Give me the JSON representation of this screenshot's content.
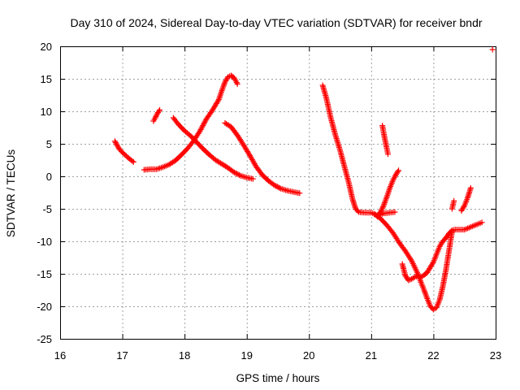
{
  "chart_data": {
    "type": "scatter",
    "title": "Day 310 of 2024, Sidereal Day-to-day VTEC variation (SDTVAR) for receiver bndr",
    "xlabel": "GPS time / hours",
    "ylabel": "SDTVAR / TECUs",
    "xlim": [
      16,
      23
    ],
    "ylim": [
      -25,
      20
    ],
    "xticks": [
      "16",
      "17",
      "18",
      "19",
      "20",
      "21",
      "22",
      "23"
    ],
    "yticks": [
      "20",
      "15",
      "10",
      "5",
      "0",
      "-5",
      "-10",
      "-15",
      "-20",
      "-25"
    ],
    "grid": true,
    "marker": "+",
    "color": "#ff0000",
    "tracks": [
      {
        "x": [
          16.88,
          16.95,
          17.02,
          17.1,
          17.18
        ],
        "y": [
          5.4,
          4.2,
          3.5,
          2.8,
          2.2
        ]
      },
      {
        "x": [
          17.5,
          17.53,
          17.56,
          17.6
        ],
        "y": [
          8.5,
          9.0,
          9.6,
          10.2
        ]
      },
      {
        "x": [
          17.35,
          17.45,
          17.55,
          17.65,
          17.75,
          17.85,
          17.95,
          18.05,
          18.15,
          18.25,
          18.35,
          18.45,
          18.55,
          18.6,
          18.65,
          18.7,
          18.75,
          18.8,
          18.85
        ],
        "y": [
          1.0,
          1.1,
          1.1,
          1.4,
          1.8,
          2.4,
          3.3,
          4.3,
          5.5,
          7.0,
          8.8,
          10.2,
          11.8,
          13.2,
          14.5,
          15.3,
          15.5,
          15.1,
          14.2
        ]
      },
      {
        "x": [
          17.82,
          17.9,
          18.0,
          18.1,
          18.2,
          18.3,
          18.4,
          18.5,
          18.6,
          18.7,
          18.8,
          18.9,
          19.0,
          19.1
        ],
        "y": [
          9.0,
          8.0,
          7.0,
          6.2,
          5.2,
          4.2,
          3.3,
          2.5,
          1.9,
          1.3,
          0.6,
          0.1,
          -0.2,
          -0.4
        ]
      },
      {
        "x": [
          18.65,
          18.75,
          18.85,
          18.95,
          19.05,
          19.15,
          19.25,
          19.35,
          19.45,
          19.55,
          19.65,
          19.75,
          19.85
        ],
        "y": [
          8.2,
          7.6,
          6.3,
          4.8,
          3.2,
          1.5,
          0.2,
          -0.7,
          -1.4,
          -1.9,
          -2.2,
          -2.4,
          -2.6
        ]
      },
      {
        "x": [
          20.22,
          20.28,
          20.35,
          20.42,
          20.5,
          20.57,
          20.64,
          20.7,
          20.75,
          20.8,
          20.9,
          21.0,
          21.05,
          21.1,
          21.15,
          21.2,
          21.3,
          21.38
        ],
        "y": [
          14.0,
          12.0,
          9.0,
          6.5,
          4.0,
          1.5,
          -1.0,
          -3.5,
          -5.0,
          -5.5,
          -5.6,
          -5.6,
          -5.8,
          -6.0,
          -5.9,
          -5.7,
          -5.6,
          -5.5
        ]
      },
      {
        "x": [
          21.18,
          21.21,
          21.24,
          21.27
        ],
        "y": [
          7.8,
          6.2,
          4.8,
          3.4
        ]
      },
      {
        "x": [
          21.1,
          21.15,
          21.2,
          21.25,
          21.3,
          21.35,
          21.4,
          21.44
        ],
        "y": [
          -6.2,
          -5.5,
          -4.5,
          -3.2,
          -1.8,
          -0.6,
          0.3,
          0.9
        ]
      },
      {
        "x": [
          21.05,
          21.15,
          21.25,
          21.35,
          21.45,
          21.55,
          21.65,
          21.75,
          21.8,
          21.85,
          21.9,
          21.95,
          22.0,
          22.05,
          22.1,
          22.15,
          22.2,
          22.25,
          22.3
        ],
        "y": [
          -5.8,
          -6.5,
          -7.5,
          -8.7,
          -10.2,
          -11.5,
          -13.0,
          -15.0,
          -16.3,
          -17.5,
          -18.8,
          -20.0,
          -20.5,
          -20.2,
          -19.0,
          -17.0,
          -14.5,
          -11.5,
          -8.5
        ]
      },
      {
        "x": [
          21.5,
          21.55,
          21.6,
          21.65,
          21.7,
          21.75,
          21.8,
          21.85,
          21.9,
          21.95,
          22.0,
          22.05,
          22.1,
          22.15,
          22.2,
          22.25,
          22.3,
          22.35,
          22.4,
          22.5,
          22.6,
          22.7,
          22.78
        ],
        "y": [
          -13.5,
          -15.3,
          -16.0,
          -15.8,
          -15.5,
          -15.3,
          -15.5,
          -15.2,
          -14.8,
          -14.0,
          -13.2,
          -12.0,
          -10.8,
          -10.0,
          -9.5,
          -8.8,
          -8.3,
          -8.2,
          -8.2,
          -8.2,
          -7.8,
          -7.4,
          -7.1
        ]
      },
      {
        "x": [
          22.3,
          22.33
        ],
        "y": [
          -5.0,
          -3.8
        ]
      },
      {
        "x": [
          22.45,
          22.5,
          22.55,
          22.6
        ],
        "y": [
          -5.3,
          -4.5,
          -3.3,
          -1.8
        ]
      },
      {
        "x": [
          22.95
        ],
        "y": [
          19.5
        ]
      }
    ]
  }
}
